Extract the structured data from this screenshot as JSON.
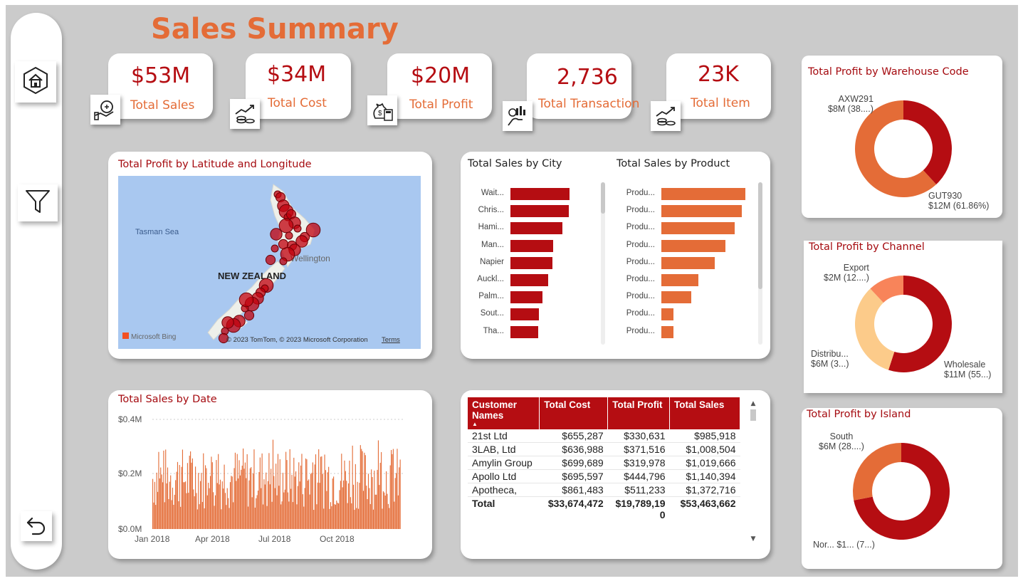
{
  "title": "Sales Summary",
  "kpis": [
    {
      "value": "$53M",
      "label": "Total Sales",
      "icon": "money-hand-icon"
    },
    {
      "value": "$34M",
      "label": "Total Cost",
      "icon": "coins-growth-icon"
    },
    {
      "value": "$20M",
      "label": "Total Profit",
      "icon": "money-bag-calculator-icon"
    },
    {
      "value": "2,736",
      "label": "Total Transaction",
      "icon": "hand-chart-icon"
    },
    {
      "value": "23K",
      "label": "Total Item",
      "icon": "coins-growth-icon"
    }
  ],
  "nav": {
    "home": "home-icon",
    "filter": "filter-icon",
    "back": "back-arrow-icon"
  },
  "map": {
    "title": "Total Profit by Latitude and Longitude",
    "sea_label": "Tasman Sea",
    "country_label": "NEW ZEALAND",
    "city_label": "Wellington",
    "bing": "Microsoft Bing",
    "copyright": "© 2023 TomTom, © 2023 Microsoft Corporation",
    "terms": "Terms"
  },
  "city_chart": {
    "title": "Total Sales by City",
    "categories": [
      "Wait...",
      "Chris...",
      "Hami...",
      "Man...",
      "Napier",
      "Auckl...",
      "Palm...",
      "Sout...",
      "Tha..."
    ]
  },
  "product_chart": {
    "title": "Total Sales by Product",
    "categories": [
      "Produ...",
      "Produ...",
      "Produ...",
      "Produ...",
      "Produ...",
      "Produ...",
      "Produ...",
      "Produ...",
      "Produ..."
    ]
  },
  "date_chart": {
    "title": "Total Sales by Date",
    "y_ticks": [
      "$0.4M",
      "$0.2M",
      "$0.0M"
    ],
    "x_ticks": [
      "Jan 2018",
      "Apr 2018",
      "Jul 2018",
      "Oct 2018"
    ]
  },
  "table": {
    "headers": [
      "Customer Names",
      "Total Cost",
      "Total Profit",
      "Total Sales"
    ],
    "rows": [
      [
        "21st Ltd",
        "$655,287",
        "$330,631",
        "$985,918"
      ],
      [
        "3LAB, Ltd",
        "$636,988",
        "$371,516",
        "$1,008,504"
      ],
      [
        "Amylin Group",
        "$699,689",
        "$319,978",
        "$1,019,666"
      ],
      [
        "Apollo Ltd",
        "$695,597",
        "$444,796",
        "$1,140,394"
      ],
      [
        "Apotheca,",
        "$861,483",
        "$511,233",
        "$1,372,716"
      ]
    ],
    "total": [
      "Total",
      "$33,674,472",
      "$19,789,190",
      "$53,463,662"
    ]
  },
  "warehouse": {
    "title": "Total Profit by Warehouse Code",
    "labels": [
      {
        "name": "AXW291",
        "detail": "$8M (38....)"
      },
      {
        "name": "GUT930",
        "detail": "$12M (61.86%)"
      }
    ]
  },
  "channel": {
    "title": "Total Profit by Channel",
    "labels": [
      {
        "name": "Export",
        "detail": "$2M (12....)"
      },
      {
        "name": "Distribu...",
        "detail": "$6M (3...)"
      },
      {
        "name": "Wholesale",
        "detail": "$11M (55...)"
      }
    ]
  },
  "island": {
    "title": "Total Profit by Island",
    "labels": [
      {
        "name": "South",
        "detail": "$6M (28....)"
      },
      {
        "name": "Nor...",
        "detail": "$1... (7...)"
      }
    ]
  },
  "chart_data": [
    {
      "type": "bar",
      "title": "Total Sales by City",
      "categories": [
        "Wait...",
        "Chris...",
        "Hami...",
        "Man...",
        "Napier",
        "Auckl...",
        "Palm...",
        "Sout...",
        "Tha..."
      ],
      "values": [
        3.3,
        3.25,
        2.9,
        2.4,
        2.35,
        2.1,
        1.8,
        1.6,
        1.55
      ],
      "color": "#b50d12"
    },
    {
      "type": "bar",
      "title": "Total Sales by Product",
      "categories": [
        "Produ...",
        "Produ...",
        "Produ...",
        "Produ...",
        "Produ...",
        "Produ...",
        "Produ...",
        "Produ...",
        "Produ..."
      ],
      "values": [
        4.8,
        4.6,
        4.2,
        3.65,
        3.05,
        2.1,
        1.7,
        0.7,
        0.7
      ],
      "color": "#e46c37"
    },
    {
      "type": "pie",
      "title": "Total Profit by Warehouse Code",
      "labels": [
        "AXW291",
        "GUT930"
      ],
      "values": [
        38.14,
        61.86
      ],
      "colors": [
        "#b50d12",
        "#e46c37"
      ]
    },
    {
      "type": "pie",
      "title": "Total Profit by Channel",
      "labels": [
        "Wholesale",
        "Distribu...",
        "Export"
      ],
      "values": [
        55,
        33,
        12
      ],
      "colors": [
        "#b50d12",
        "#fccb8a",
        "#f8845a"
      ]
    },
    {
      "type": "pie",
      "title": "Total Profit by Island",
      "labels": [
        "Nor...",
        "South"
      ],
      "values": [
        72,
        28
      ],
      "colors": [
        "#b50d12",
        "#e46c37"
      ]
    }
  ]
}
